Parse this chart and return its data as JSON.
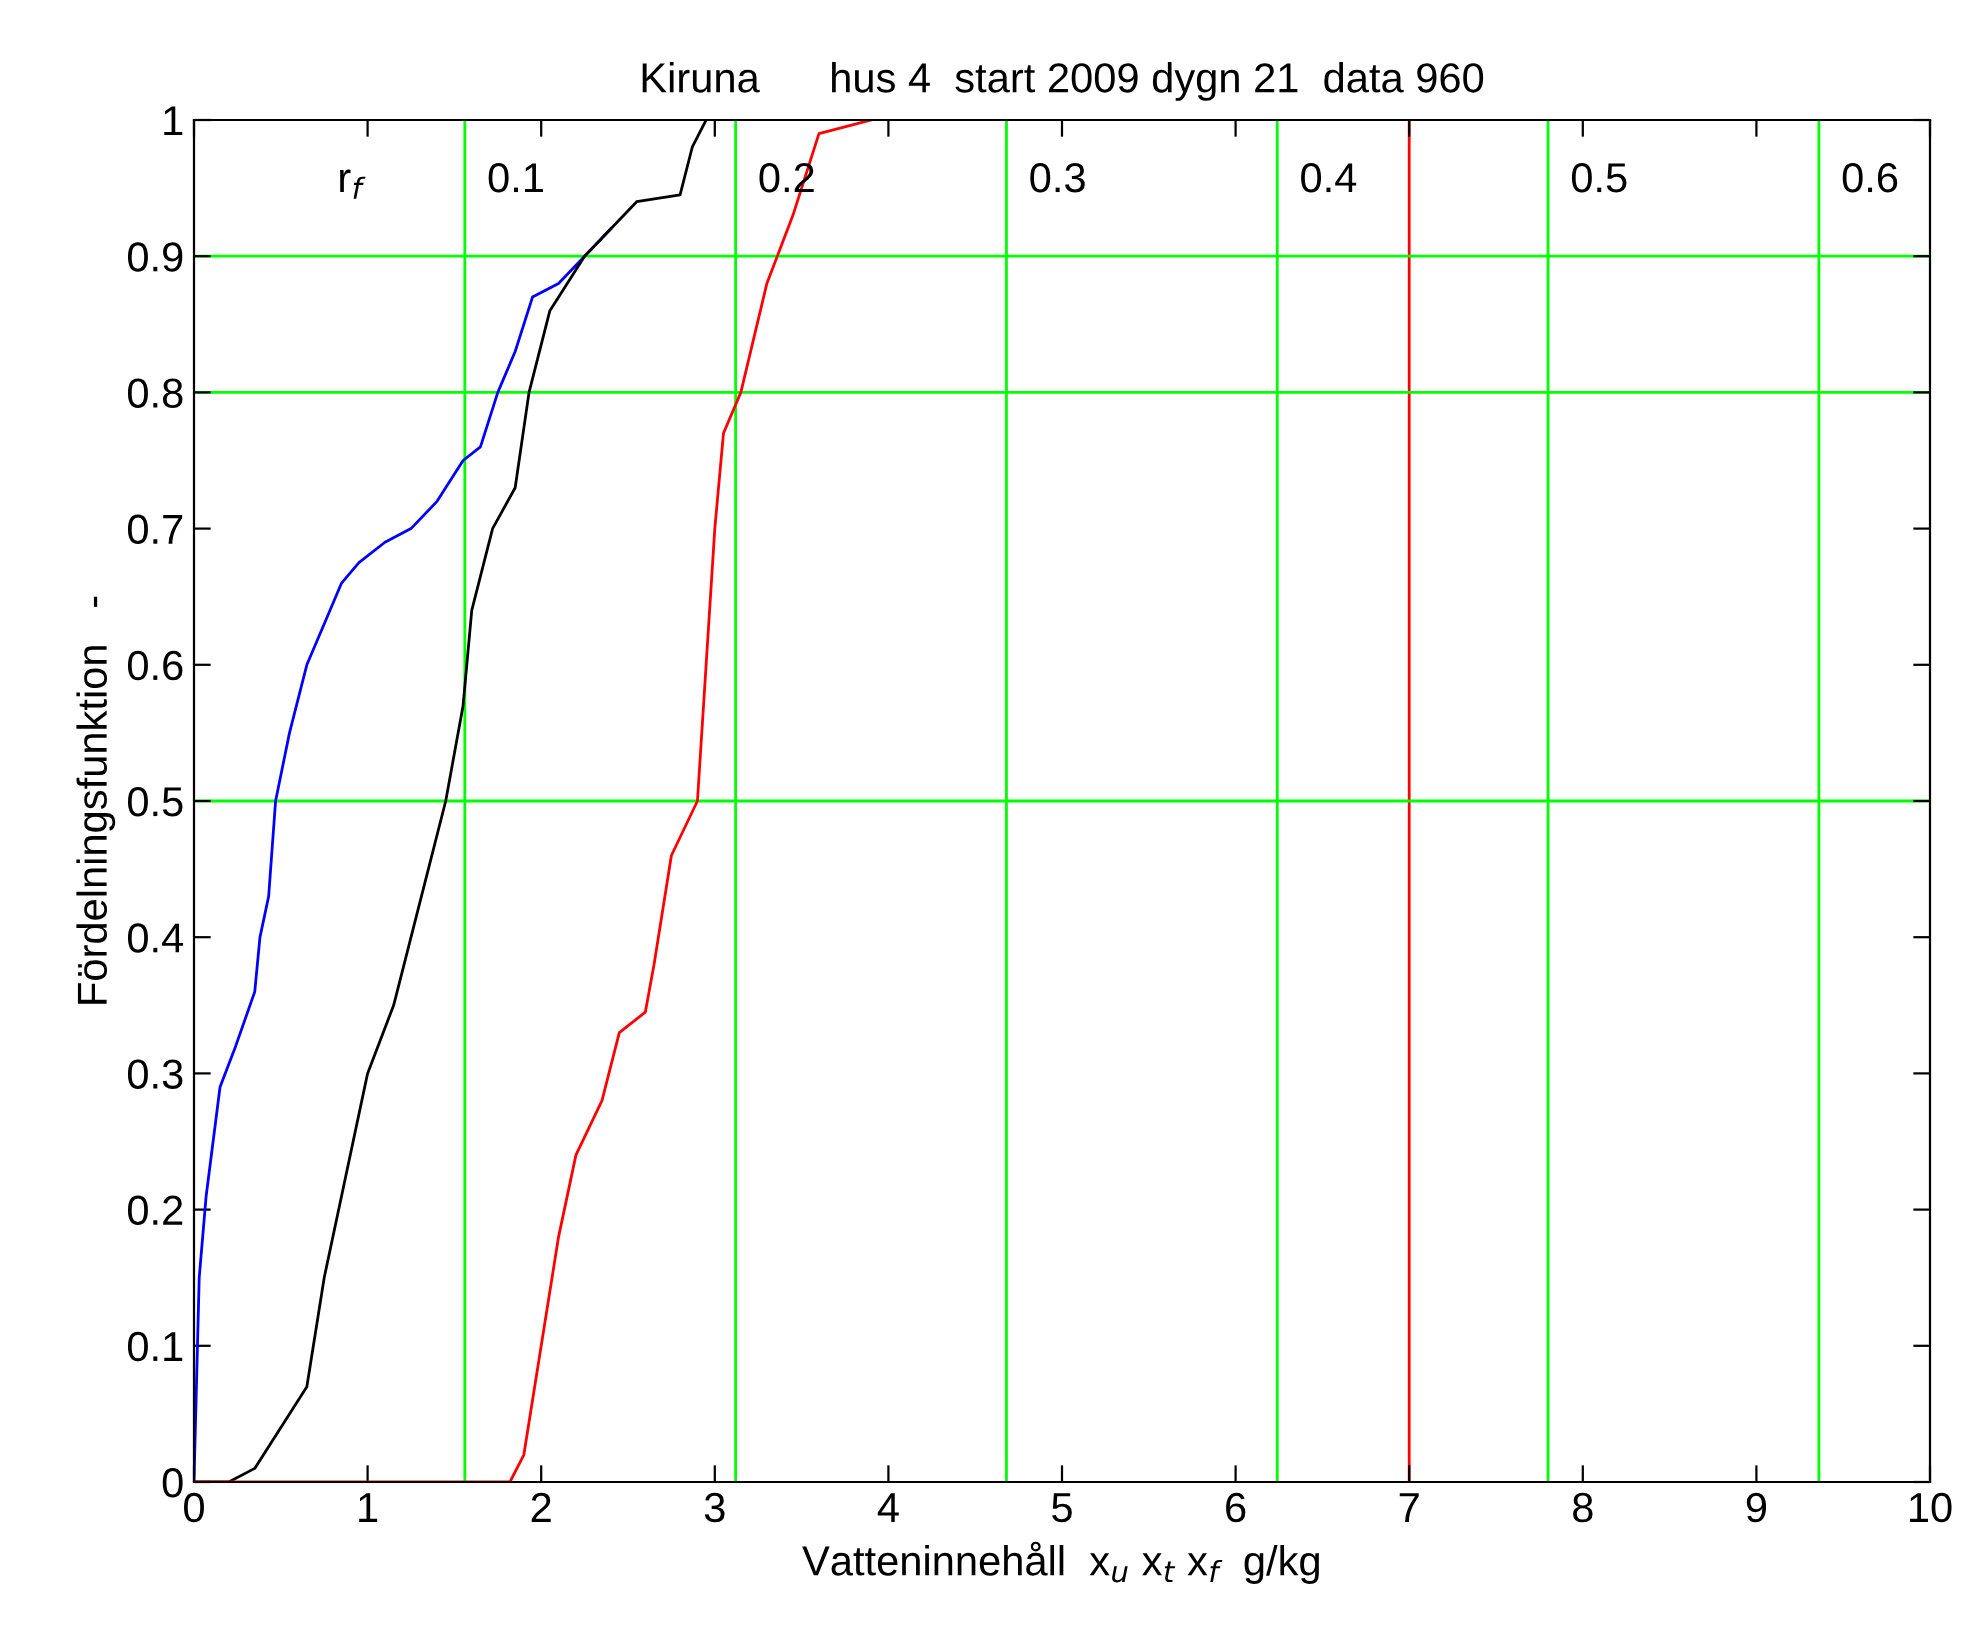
{
  "chart_data": {
    "type": "line",
    "title": "Kiruna      hus 4  start 2009 dygn 21  data 960",
    "xlabel": "Vatteninnehåll  x$_{u}$ x$_{t}$ x$_{f}$  g/kg",
    "ylabel": "Fördelningsfunktion   -",
    "xlim": [
      0,
      10
    ],
    "ylim": [
      0,
      1
    ],
    "xticks": [
      0,
      1,
      2,
      3,
      4,
      5,
      6,
      7,
      8,
      9,
      10
    ],
    "yticks": [
      0,
      0.1,
      0.2,
      0.3,
      0.4,
      0.5,
      0.6,
      0.7,
      0.8,
      0.9,
      1
    ],
    "grid": false,
    "legend": false,
    "marker": "none",
    "line_style": "solid",
    "series": [
      {
        "color": "#0000ff",
        "x": [
          0,
          0.03,
          0.07,
          0.15,
          0.24,
          0.35,
          0.38,
          0.43,
          0.47,
          0.55,
          0.65,
          0.75,
          0.85,
          0.95,
          1.1,
          1.25,
          1.4,
          1.55,
          1.65,
          1.75,
          1.85,
          1.95,
          2.1,
          2.25,
          2.4
        ],
        "values": [
          0,
          0.15,
          0.21,
          0.29,
          0.32,
          0.36,
          0.4,
          0.43,
          0.5,
          0.55,
          0.6,
          0.63,
          0.66,
          0.675,
          0.69,
          0.7,
          0.72,
          0.75,
          0.76,
          0.8,
          0.83,
          0.87,
          0.88,
          0.9,
          0.92
        ]
      },
      {
        "color": "#000000",
        "x": [
          0,
          0.2,
          0.35,
          0.55,
          0.65,
          0.75,
          0.85,
          1.0,
          1.15,
          1.35,
          1.45,
          1.55,
          1.6,
          1.72,
          1.85,
          1.93,
          2.05,
          2.25,
          2.4,
          2.55,
          2.8,
          2.87,
          2.95
        ],
        "values": [
          0,
          0,
          0.01,
          0.05,
          0.07,
          0.15,
          0.21,
          0.3,
          0.35,
          0.45,
          0.5,
          0.57,
          0.64,
          0.7,
          0.73,
          0.8,
          0.86,
          0.9,
          0.92,
          0.94,
          0.945,
          0.98,
          1
        ]
      },
      {
        "color": "#ff0000",
        "x": [
          0,
          1.82,
          1.9,
          2.0,
          2.1,
          2.2,
          2.35,
          2.45,
          2.6,
          2.65,
          2.75,
          2.9,
          2.95,
          3.0,
          3.05,
          3.15,
          3.3,
          3.45,
          3.6,
          3.9
        ],
        "values": [
          0,
          0,
          0.02,
          0.1,
          0.18,
          0.24,
          0.28,
          0.33,
          0.345,
          0.38,
          0.46,
          0.5,
          0.6,
          0.7,
          0.77,
          0.8,
          0.88,
          0.93,
          0.99,
          1
        ]
      }
    ],
    "ref_lines": [
      {
        "axis": "x",
        "value": 1.56,
        "color": "#00ff00"
      },
      {
        "axis": "x",
        "value": 3.12,
        "color": "#00ff00"
      },
      {
        "axis": "x",
        "value": 4.68,
        "color": "#00ff00"
      },
      {
        "axis": "x",
        "value": 6.24,
        "color": "#00ff00"
      },
      {
        "axis": "x",
        "value": 7.8,
        "color": "#00ff00"
      },
      {
        "axis": "x",
        "value": 9.36,
        "color": "#00ff00"
      },
      {
        "axis": "x",
        "value": 7.0,
        "color": "#ff0000"
      },
      {
        "axis": "y",
        "value": 0.5,
        "color": "#00ff00"
      },
      {
        "axis": "y",
        "value": 0.8,
        "color": "#00ff00"
      },
      {
        "axis": "y",
        "value": 0.9,
        "color": "#00ff00"
      }
    ],
    "annotations": [
      "r$_{f}$",
      {
        "text": "0.1",
        "x": 1.56,
        "y": 0.955
      },
      {
        "text": "0.2",
        "x": 3.12,
        "y": 0.955
      },
      {
        "text": "0.3",
        "x": 4.68,
        "y": 0.955
      },
      {
        "text": "0.4",
        "x": 6.24,
        "y": 0.955
      },
      {
        "text": "0.5",
        "x": 7.8,
        "y": 0.955
      },
      {
        "text": "0.6",
        "x": 9.36,
        "y": 0.955
      }
    ]
  }
}
